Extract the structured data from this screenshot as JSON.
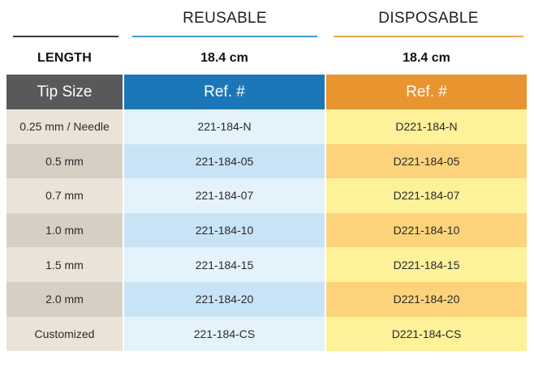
{
  "columns": {
    "reusable_title": "REUSABLE",
    "disposable_title": "DISPOSABLE"
  },
  "length_row": {
    "label": "LENGTH",
    "reusable_value": "18.4 cm",
    "disposable_value": "18.4 cm"
  },
  "table": {
    "headers": [
      "Tip Size",
      "Ref. #",
      "Ref. #"
    ],
    "rows": [
      [
        "0.25 mm / Needle",
        "221-184-N",
        "D221-184-N"
      ],
      [
        "0.5 mm",
        "221-184-05",
        "D221-184-05"
      ],
      [
        "0.7 mm",
        "221-184-07",
        "D221-184-07"
      ],
      [
        "1.0 mm",
        "221-184-10",
        "D221-184-10"
      ],
      [
        "1.5 mm",
        "221-184-15",
        "D221-184-15"
      ],
      [
        "2.0 mm",
        "221-184-20",
        "D221-184-20"
      ],
      [
        "Customized",
        "221-184-CS",
        "D221-184-CS"
      ]
    ]
  },
  "colors": {
    "header_gray": "#58595b",
    "reusable_blue": "#1c77b8",
    "disposable_orange": "#e8942f"
  }
}
